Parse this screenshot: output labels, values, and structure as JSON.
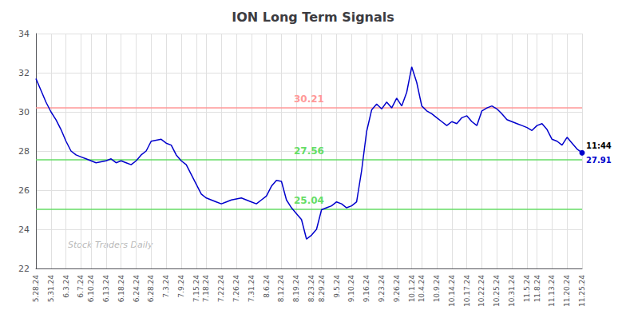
{
  "chart_data": {
    "type": "line",
    "title": "ION Long Term Signals",
    "categories": [
      "5.28.24",
      null,
      null,
      "5.31.24",
      null,
      null,
      "6.3.24",
      null,
      null,
      "6.7.24",
      null,
      "6.10.24",
      null,
      null,
      "6.13.24",
      null,
      null,
      "6.18.24",
      null,
      null,
      "6.24.24",
      null,
      null,
      "6.28.24",
      null,
      null,
      "7.3.24",
      null,
      null,
      "7.9.24",
      null,
      null,
      "7.15.24",
      null,
      "7.18.24",
      null,
      null,
      "7.22.24",
      null,
      null,
      "7.26.24",
      null,
      null,
      "7.31.24",
      null,
      null,
      "8.6.24",
      null,
      null,
      "8.12.24",
      null,
      null,
      "8.19.24",
      null,
      null,
      "8.23.24",
      null,
      "8.29.24",
      null,
      null,
      "9.5.24",
      null,
      null,
      "9.10.24",
      null,
      null,
      "9.16.24",
      null,
      null,
      "9.23.24",
      null,
      null,
      "9.26.24",
      null,
      null,
      "10.1.24",
      null,
      "10.4.24",
      null,
      null,
      "10.9.24",
      null,
      null,
      "10.14.24",
      null,
      null,
      "10.17.24",
      null,
      null,
      "10.22.24",
      null,
      null,
      "10.25.24",
      null,
      null,
      "10.31.24",
      null,
      null,
      "11.5.24",
      null,
      "11.8.24",
      null,
      null,
      "11.13.24",
      null,
      null,
      "11.20.24",
      null,
      null,
      "11.25.24"
    ],
    "values": [
      31.7,
      31.1,
      30.5,
      30.0,
      29.6,
      29.1,
      28.5,
      28.0,
      27.8,
      27.7,
      27.6,
      27.5,
      27.4,
      27.45,
      27.5,
      27.6,
      27.4,
      27.5,
      27.4,
      27.3,
      27.5,
      27.8,
      28.0,
      28.5,
      28.55,
      28.6,
      28.4,
      28.3,
      27.8,
      27.5,
      27.3,
      26.8,
      26.3,
      25.8,
      25.6,
      25.5,
      25.4,
      25.3,
      25.4,
      25.5,
      25.55,
      25.6,
      25.5,
      25.4,
      25.3,
      25.5,
      25.7,
      26.2,
      26.5,
      26.45,
      25.5,
      25.1,
      24.8,
      24.5,
      23.5,
      23.7,
      24.0,
      25.0,
      25.1,
      25.2,
      25.4,
      25.3,
      25.1,
      25.2,
      25.4,
      27.0,
      29.0,
      30.1,
      30.4,
      30.15,
      30.5,
      30.2,
      30.7,
      30.3,
      31.0,
      32.3,
      31.5,
      30.3,
      30.05,
      29.9,
      29.7,
      29.5,
      29.3,
      29.5,
      29.4,
      29.7,
      29.8,
      29.5,
      29.3,
      30.05,
      30.2,
      30.3,
      30.15,
      29.9,
      29.6,
      29.5,
      29.4,
      29.3,
      29.2,
      29.05,
      29.3,
      29.4,
      29.1,
      28.6,
      28.5,
      28.3,
      28.7,
      28.4,
      28.1,
      27.91
    ],
    "color": "#0000cc",
    "ylim": [
      22,
      34
    ],
    "yticks": [
      22,
      24,
      26,
      28,
      30,
      32,
      34
    ],
    "grid": true,
    "hlines": [
      {
        "y": 30.21,
        "color": "#ff9999"
      },
      {
        "y": 27.56,
        "color": "#66dd66"
      },
      {
        "y": 25.04,
        "color": "#66dd66"
      }
    ],
    "annotations": [
      {
        "text": "11:44",
        "y": 27.91,
        "color": "#000000"
      },
      {
        "text": "27.91",
        "y": 27.91,
        "color": "#0000cc"
      },
      {
        "text": "Stock Traders Daily",
        "color": "#aaaaaa"
      }
    ]
  }
}
